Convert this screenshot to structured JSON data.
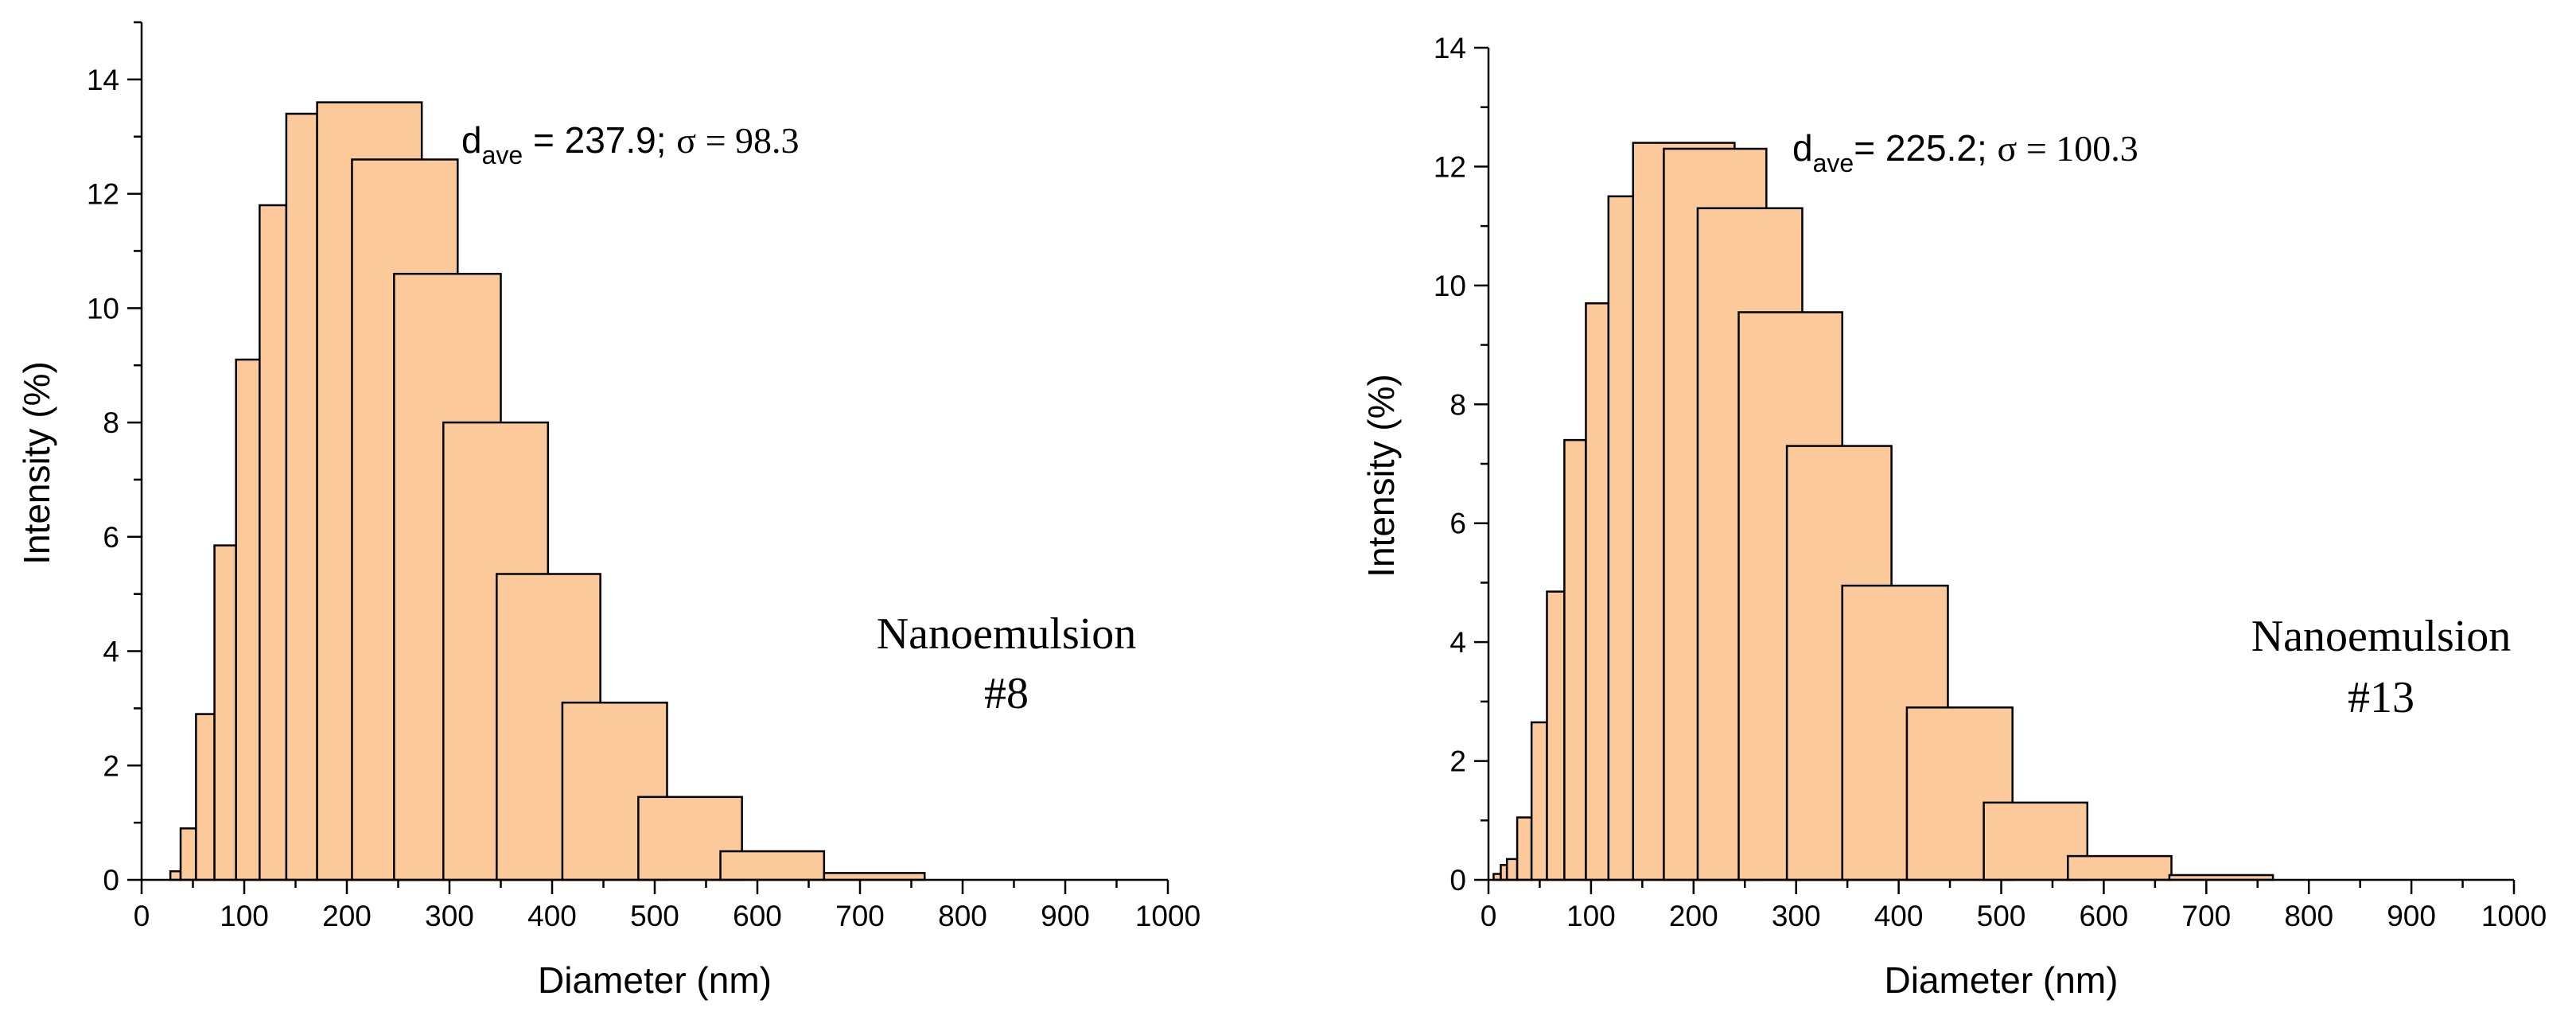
{
  "chart_data": [
    {
      "type": "bar",
      "title": "",
      "xlabel": "Diameter (nm)",
      "ylabel": "Intensity (%)",
      "xlim": [
        0,
        1000
      ],
      "ylim": [
        0,
        15
      ],
      "x_ticks": [
        0,
        100,
        200,
        300,
        400,
        500,
        600,
        700,
        800,
        900,
        1000
      ],
      "y_ticks": [
        0,
        2,
        4,
        6,
        8,
        10,
        12,
        14
      ],
      "bars": [
        {
          "x0": 28,
          "x1": 38,
          "value": 0.15
        },
        {
          "x0": 38,
          "x1": 53,
          "value": 0.9
        },
        {
          "x0": 53,
          "x1": 71,
          "value": 2.9
        },
        {
          "x0": 71,
          "x1": 92,
          "value": 5.85
        },
        {
          "x0": 92,
          "x1": 115,
          "value": 9.1
        },
        {
          "x0": 115,
          "x1": 141,
          "value": 11.8
        },
        {
          "x0": 141,
          "x1": 171,
          "value": 13.4
        },
        {
          "x0": 171,
          "x1": 273,
          "value": 13.6
        },
        {
          "x0": 205,
          "x1": 308,
          "value": 12.6
        },
        {
          "x0": 246,
          "x1": 350,
          "value": 10.6
        },
        {
          "x0": 294,
          "x1": 396,
          "value": 8.0
        },
        {
          "x0": 346,
          "x1": 447,
          "value": 5.35
        },
        {
          "x0": 410,
          "x1": 512,
          "value": 3.1
        },
        {
          "x0": 484,
          "x1": 585,
          "value": 1.45
        },
        {
          "x0": 564,
          "x1": 665,
          "value": 0.5
        },
        {
          "x0": 665,
          "x1": 763,
          "value": 0.12
        }
      ],
      "stats": {
        "d_symbol": "d",
        "d_subscript": "ave",
        "d_text": " = 237.9; ",
        "sigma_text": "σ = 98.3"
      },
      "sample_label": [
        "Nanoemulsion",
        "#8"
      ]
    },
    {
      "type": "bar",
      "title": "",
      "xlabel": "Diameter (nm)",
      "ylabel": "Intensity (%)",
      "xlim": [
        0,
        1000
      ],
      "ylim": [
        0,
        14
      ],
      "x_ticks": [
        0,
        100,
        200,
        300,
        400,
        500,
        600,
        700,
        800,
        900,
        1000
      ],
      "y_ticks": [
        0,
        2,
        4,
        6,
        8,
        10,
        12,
        14
      ],
      "bars": [
        {
          "x0": 5,
          "x1": 12,
          "value": 0.1
        },
        {
          "x0": 12,
          "x1": 18,
          "value": 0.25
        },
        {
          "x0": 18,
          "x1": 28,
          "value": 0.35
        },
        {
          "x0": 28,
          "x1": 42,
          "value": 1.05
        },
        {
          "x0": 42,
          "x1": 57,
          "value": 2.65
        },
        {
          "x0": 57,
          "x1": 74,
          "value": 4.85
        },
        {
          "x0": 74,
          "x1": 95,
          "value": 7.4
        },
        {
          "x0": 95,
          "x1": 117,
          "value": 9.7
        },
        {
          "x0": 117,
          "x1": 141,
          "value": 11.5
        },
        {
          "x0": 141,
          "x1": 240,
          "value": 12.4
        },
        {
          "x0": 171,
          "x1": 271,
          "value": 12.3
        },
        {
          "x0": 204,
          "x1": 306,
          "value": 11.3
        },
        {
          "x0": 244,
          "x1": 345,
          "value": 9.55
        },
        {
          "x0": 291,
          "x1": 393,
          "value": 7.3
        },
        {
          "x0": 345,
          "x1": 448,
          "value": 4.95
        },
        {
          "x0": 408,
          "x1": 511,
          "value": 2.9
        },
        {
          "x0": 483,
          "x1": 584,
          "value": 1.3
        },
        {
          "x0": 565,
          "x1": 666,
          "value": 0.4
        },
        {
          "x0": 664,
          "x1": 765,
          "value": 0.08
        }
      ],
      "stats": {
        "d_symbol": "d",
        "d_subscript": "ave",
        "d_text": "= 225.2; ",
        "sigma_text": "σ = 100.3"
      },
      "sample_label": [
        "Nanoemulsion",
        "#13"
      ]
    }
  ]
}
